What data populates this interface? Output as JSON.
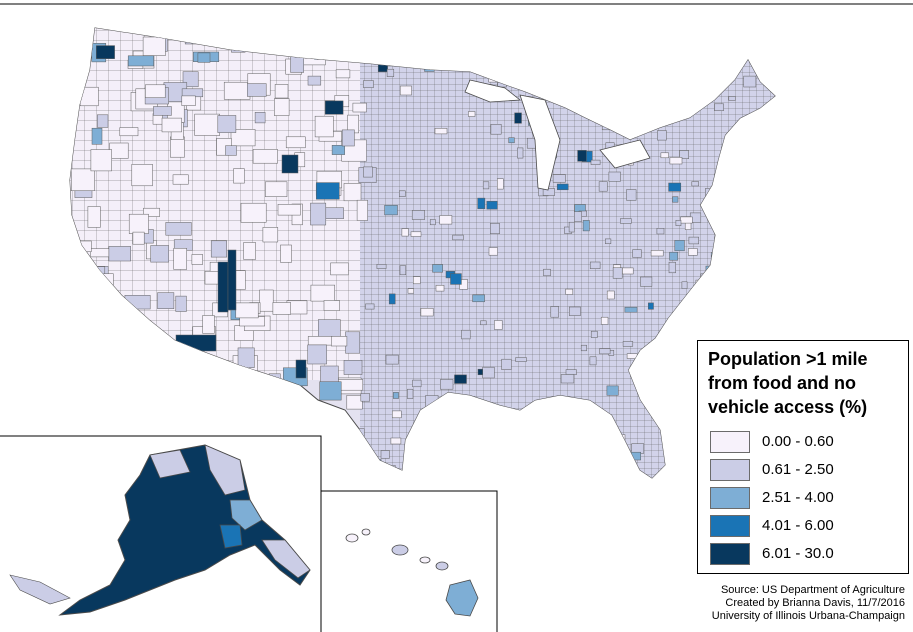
{
  "legend": {
    "title_lines": [
      "Population >1 mile",
      "from food and no",
      "vehicle access (%)"
    ],
    "classes": [
      {
        "label": "0.00 - 0.60",
        "color": "#f7f2fb"
      },
      {
        "label": "0.61 - 2.50",
        "color": "#cbcde6"
      },
      {
        "label": "2.51 - 4.00",
        "color": "#7eaed5"
      },
      {
        "label": "4.01 - 6.00",
        "color": "#1a74b5"
      },
      {
        "label": "6.01 - 30.0",
        "color": "#08385e"
      }
    ]
  },
  "credits": {
    "source": "Source: US Department of Agriculture",
    "author": "Created by Brianna Davis, 11/7/2016",
    "institution": "University of Illinois Urbana-Champaign"
  },
  "colors": {
    "county_border": "#5d5d5d",
    "background": "#ffffff"
  },
  "map_regions": [
    "contiguous-us",
    "alaska-inset",
    "hawaii-inset"
  ]
}
